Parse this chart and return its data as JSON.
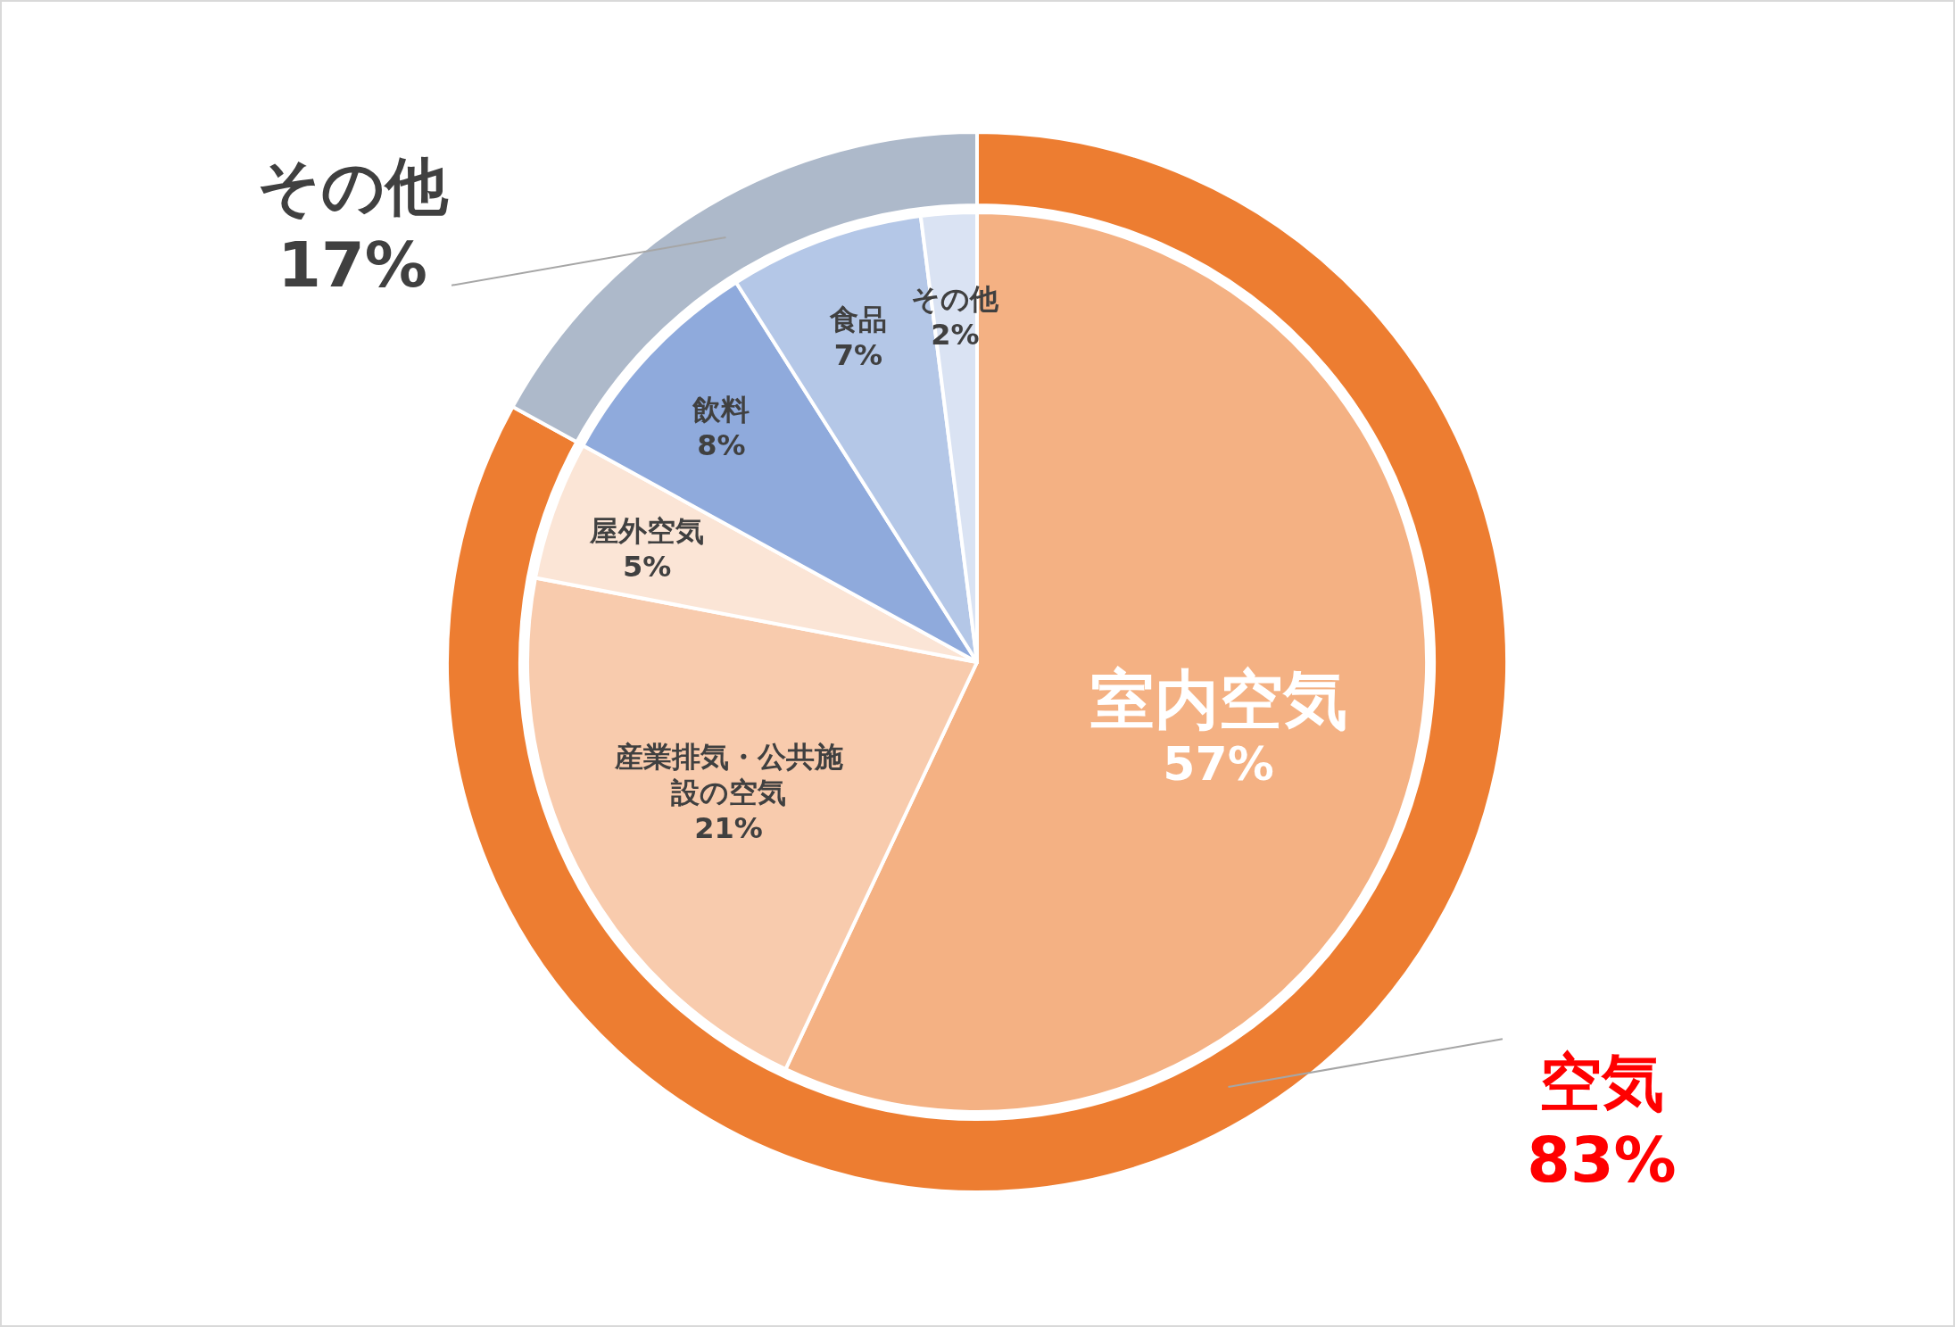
{
  "chart_data": [
    {
      "type": "donut",
      "categories": [
        "空気",
        "その他"
      ],
      "values": [
        83,
        17
      ],
      "value_labels": [
        "83%",
        "17%"
      ],
      "colors": [
        "#ed7d31",
        "#adb9ca"
      ]
    },
    {
      "type": "pie",
      "categories": [
        "室内空気",
        "産業排気・公共施設の空気",
        "屋外空気",
        "飲料",
        "食品",
        "その他"
      ],
      "values": [
        57,
        21,
        5,
        8,
        7,
        2
      ],
      "value_labels": [
        "57%",
        "21%",
        "5%",
        "8%",
        "7%",
        "2%"
      ],
      "colors": [
        "#f4b183",
        "#f8cbad",
        "#fbe5d6",
        "#8faadc",
        "#b4c7e7",
        "#dae3f3"
      ]
    }
  ]
}
